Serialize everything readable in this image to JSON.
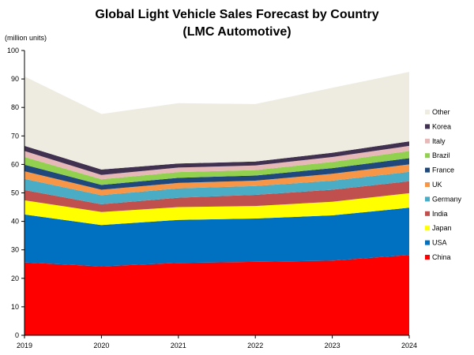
{
  "chart_data": {
    "type": "area",
    "stacked": true,
    "title": "Global Light Vehicle Sales Forecast by Country",
    "subtitle": "(LMC Automotive)",
    "ylabel": "(million units)",
    "xlabel": "",
    "x": [
      "2019",
      "2020",
      "2021",
      "2022",
      "2023",
      "2024"
    ],
    "ylim": [
      0,
      100
    ],
    "yticks": [
      0,
      10,
      20,
      30,
      40,
      50,
      60,
      70,
      80,
      90,
      100
    ],
    "grid": false,
    "legend_position": "right",
    "series": [
      {
        "name": "China",
        "color": "#ff0000",
        "values": [
          25.6,
          24.2,
          25.4,
          25.8,
          26.2,
          28.2
        ]
      },
      {
        "name": "USA",
        "color": "#0070c0",
        "values": [
          16.8,
          14.5,
          15.1,
          15.2,
          15.9,
          16.6
        ]
      },
      {
        "name": "Japan",
        "color": "#ffff00",
        "values": [
          5.0,
          4.6,
          4.5,
          4.4,
          4.8,
          5.1
        ]
      },
      {
        "name": "India",
        "color": "#c0504d",
        "values": [
          3.6,
          2.7,
          3.3,
          3.9,
          4.2,
          4.2
        ]
      },
      {
        "name": "Germany",
        "color": "#4bacc6",
        "values": [
          3.9,
          3.2,
          3.3,
          3.1,
          3.2,
          3.3
        ]
      },
      {
        "name": "UK",
        "color": "#f79646",
        "values": [
          2.7,
          1.9,
          1.9,
          1.9,
          2.4,
          2.6
        ]
      },
      {
        "name": "France",
        "color": "#1f497d",
        "values": [
          2.3,
          1.7,
          1.8,
          1.8,
          2.0,
          2.2
        ]
      },
      {
        "name": "Brazil",
        "color": "#92d050",
        "values": [
          2.7,
          2.0,
          2.0,
          1.9,
          2.2,
          2.5
        ]
      },
      {
        "name": "Italy",
        "color": "#e6b9b8",
        "values": [
          2.1,
          1.5,
          1.6,
          1.6,
          1.7,
          1.8
        ]
      },
      {
        "name": "Korea",
        "color": "#403151",
        "values": [
          1.8,
          1.9,
          1.4,
          1.4,
          1.5,
          1.6
        ]
      },
      {
        "name": "Other",
        "color": "#eeece1",
        "values": [
          24.4,
          19.5,
          21.2,
          20.2,
          22.8,
          24.4
        ]
      }
    ]
  }
}
